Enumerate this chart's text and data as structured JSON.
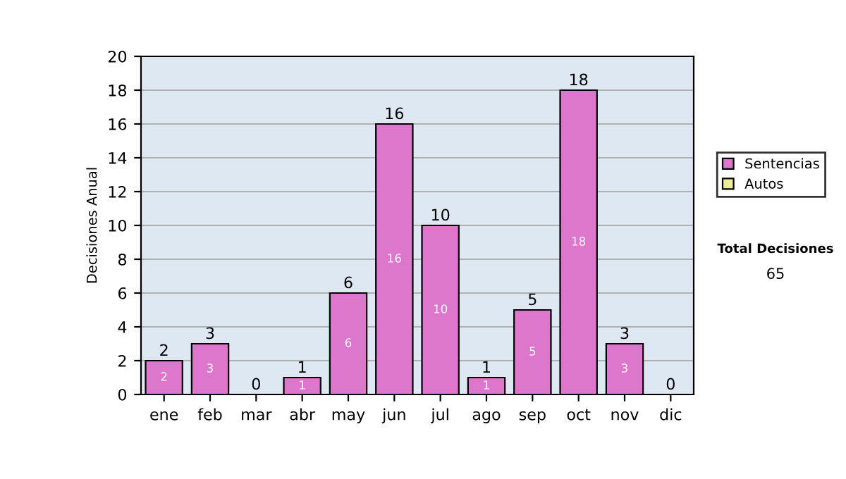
{
  "chart_data": {
    "type": "bar",
    "stacked": true,
    "ylabel": "Decisiones Anual",
    "categories": [
      "ene",
      "feb",
      "mar",
      "abr",
      "may",
      "jun",
      "jul",
      "ago",
      "sep",
      "oct",
      "nov",
      "dic"
    ],
    "series": [
      {
        "name": "Sentencias",
        "color": "#dd77cc",
        "values": [
          2,
          3,
          0,
          1,
          6,
          16,
          10,
          1,
          5,
          18,
          3,
          0
        ],
        "value_labels": [
          "2",
          "3",
          null,
          "1",
          "6",
          "16",
          "10",
          "1",
          "5",
          "18",
          "3",
          null
        ]
      },
      {
        "name": "Autos",
        "color": "#eeee99",
        "values": [
          0,
          0,
          0,
          0,
          0,
          0,
          0,
          0,
          0,
          0,
          0,
          0
        ]
      }
    ],
    "totals": [
      "2",
      "3",
      "0",
      "1",
      "6",
      "16",
      "10",
      "1",
      "5",
      "18",
      "3",
      "0"
    ],
    "ylim": [
      0,
      20
    ],
    "yticks": [
      0,
      2,
      4,
      6,
      8,
      10,
      12,
      14,
      16,
      18,
      20
    ],
    "grid": "y",
    "legend": "right",
    "annotations": [
      "Total Decisiones",
      "65"
    ]
  }
}
